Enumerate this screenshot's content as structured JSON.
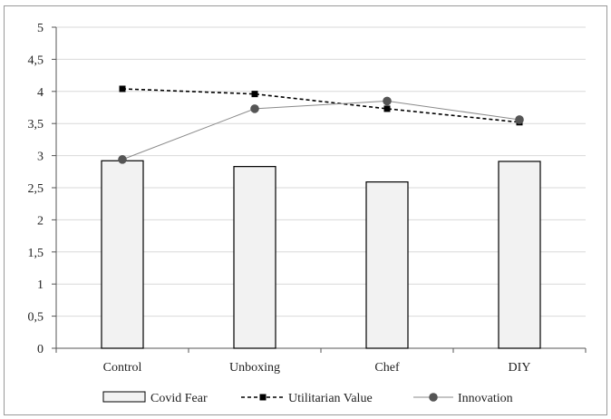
{
  "chart_data": {
    "type": "bar+line",
    "categories": [
      "Control",
      "Unboxing",
      "Chef",
      "DIY"
    ],
    "ylim": [
      0,
      5
    ],
    "y_ticks": [
      "0",
      "0,5",
      "1",
      "1,5",
      "2",
      "2,5",
      "3",
      "3,5",
      "4",
      "4,5",
      "5"
    ],
    "y_tick_values": [
      0,
      0.5,
      1,
      1.5,
      2,
      2.5,
      3,
      3.5,
      4,
      4.5,
      5
    ],
    "grid": true,
    "legend_position": "bottom",
    "series": [
      {
        "name": "Covid Fear",
        "kind": "bar",
        "values": [
          2.92,
          2.83,
          2.59,
          2.91
        ],
        "color": "#f2f2f2",
        "edge_color": "#000000"
      },
      {
        "name": "Utilitarian Value",
        "kind": "line",
        "style": "dashed",
        "marker": "square",
        "values": [
          4.04,
          3.96,
          3.73,
          3.52
        ],
        "color": "#000000"
      },
      {
        "name": "Innovation",
        "kind": "line",
        "style": "solid",
        "marker": "circle",
        "values": [
          2.94,
          3.73,
          3.85,
          3.56
        ],
        "color": "#555555",
        "line_color": "#8a8a8a"
      }
    ]
  }
}
